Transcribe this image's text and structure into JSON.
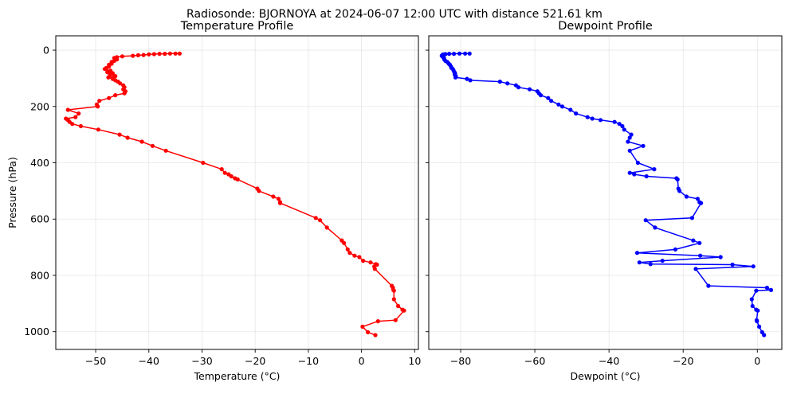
{
  "suptitle": "Radiosonde: BJORNOYA at 2024-06-07 12:00 UTC with distance 521.61 km",
  "chart_data": [
    {
      "type": "line",
      "title": "Temperature Profile",
      "xlabel": "Temperature (°C)",
      "ylabel": "Pressure (hPa)",
      "xlim": [
        -57.5,
        10.7
      ],
      "ylim": [
        1063,
        -51
      ],
      "y_inverted": true,
      "xticks": [
        -50,
        -40,
        -30,
        -20,
        -10,
        0,
        10
      ],
      "yticks": [
        0,
        200,
        400,
        600,
        800,
        1000
      ],
      "grid": true,
      "color": "#ff0000",
      "marker": "circle",
      "series": [
        {
          "x": [
            -34.2,
            -35,
            -36,
            -37,
            -38,
            -39,
            -40,
            -41,
            -42,
            -43,
            -45,
            -46,
            -46.5,
            -46,
            -46.5,
            -47,
            -47,
            -47.5,
            -47.5,
            -48,
            -48.3,
            -47.2,
            -47.8,
            -46.8,
            -47.3,
            -46.3,
            -47.6,
            -46.8,
            -46.3,
            -45.8,
            -45.4,
            -44.8,
            -44.6,
            -44.8,
            -44.4,
            -44.6,
            -46.3,
            -47.5,
            -49.3,
            -49.8,
            -49.6,
            -55.2,
            -53.2,
            -53.8,
            -55.6,
            -55.2,
            -54.9,
            -54.4,
            -52.8,
            -49.5,
            -45.5,
            -44,
            -41.3,
            -39.3,
            -36.8,
            -29.8,
            -26.3,
            -25.7,
            -25,
            -24.5,
            -23.8,
            -23.3,
            -19.6,
            -19.3,
            -16.6,
            -15.6,
            -15.3,
            -15.3,
            -8.6,
            -7.8,
            -6.5,
            -3.7,
            -3.3,
            -2.6,
            -2.2,
            -1.3,
            -0.4,
            0.3,
            1.7,
            2.7,
            2.9,
            2.4,
            2.5,
            5.7,
            5.9,
            6,
            6.1,
            6.1,
            6.9,
            7.7,
            8,
            6.4,
            3.1,
            0.2,
            1.2,
            2.6
          ],
          "y": [
            12,
            12,
            12,
            13,
            13,
            14,
            15,
            17,
            18,
            20,
            22,
            25,
            28,
            33,
            38,
            42,
            48,
            52,
            58,
            63,
            67,
            73,
            78,
            82,
            87,
            92,
            97,
            102,
            107,
            112,
            118,
            125,
            132,
            139,
            146,
            153,
            160,
            170,
            180,
            193,
            200,
            212,
            225,
            238,
            243,
            248,
            255,
            262,
            270,
            282,
            300,
            311,
            325,
            340,
            357,
            400,
            423,
            436,
            441,
            448,
            455,
            459,
            492,
            500,
            520,
            528,
            540,
            543,
            596,
            604,
            630,
            676,
            685,
            708,
            720,
            730,
            735,
            748,
            754,
            760,
            762,
            768,
            777,
            837,
            844,
            852,
            854,
            885,
            909,
            922,
            925,
            959,
            963,
            982,
            1002,
            1012
          ]
        }
      ]
    },
    {
      "type": "line",
      "title": "Dewpoint Profile",
      "xlabel": "Dewpoint (°C)",
      "ylabel": "",
      "xlim": [
        -88.6,
        6.6
      ],
      "ylim": [
        1063,
        -51
      ],
      "y_inverted": true,
      "xticks": [
        -80,
        -60,
        -40,
        -20,
        0
      ],
      "yticks": [
        0,
        200,
        400,
        600,
        800,
        1000
      ],
      "grid": true,
      "color": "#0000ff",
      "marker": "circle",
      "series": [
        {
          "x": [
            -77.6,
            -78.8,
            -80.3,
            -81.8,
            -83.1,
            -84.1,
            -84.7,
            -84.8,
            -85,
            -85.1,
            -84.8,
            -84.7,
            -84.5,
            -84.4,
            -84.1,
            -83.6,
            -83.2,
            -82.9,
            -82.6,
            -82.5,
            -82.1,
            -81.9,
            -81.7,
            -81.5,
            -81.6,
            -81.3,
            -81.4,
            -78.3,
            -77.4,
            -69.4,
            -67.4,
            -65.1,
            -64.4,
            -61.4,
            -59.3,
            -58.9,
            -58.4,
            -56.4,
            -55.6,
            -53.6,
            -52.6,
            -50.4,
            -48.9,
            -45.8,
            -44.5,
            -42.3,
            -38.5,
            -37.2,
            -36.4,
            -35.9,
            -34,
            -34.4,
            -34.9,
            -30.8,
            -34.4,
            -32.2,
            -27.8,
            -34.4,
            -33.2,
            -29.9,
            -21.8,
            -21.5,
            -21.3,
            -21,
            -19.1,
            -16.1,
            -15.6,
            -15.2,
            -17.6,
            -30.1,
            -27.6,
            -17.3,
            -15.6,
            -22.1,
            -32.4,
            -15.4,
            -9.9,
            -25.6,
            -31.8,
            -28.8,
            -6.7,
            -1.1,
            -16.6,
            -13.2,
            2.6,
            3.7,
            -0.3,
            -1.5,
            -1.3,
            -0.3,
            0.1,
            -0.2,
            -0.1,
            0.5,
            1.3,
            1.8
          ],
          "y": [
            12,
            12,
            12,
            13,
            13,
            14,
            15,
            17,
            18,
            20,
            22,
            25,
            28,
            33,
            38,
            42,
            48,
            52,
            58,
            63,
            67,
            73,
            78,
            82,
            87,
            92,
            97,
            102,
            107,
            112,
            118,
            125,
            132,
            139,
            146,
            153,
            160,
            170,
            180,
            193,
            200,
            212,
            225,
            238,
            243,
            248,
            255,
            262,
            270,
            282,
            300,
            311,
            325,
            340,
            357,
            400,
            423,
            436,
            441,
            448,
            455,
            459,
            492,
            500,
            520,
            528,
            540,
            543,
            596,
            604,
            630,
            676,
            685,
            708,
            720,
            730,
            735,
            748,
            754,
            760,
            762,
            768,
            777,
            837,
            844,
            852,
            854,
            885,
            909,
            922,
            925,
            959,
            963,
            982,
            1002,
            1012
          ]
        }
      ]
    }
  ]
}
